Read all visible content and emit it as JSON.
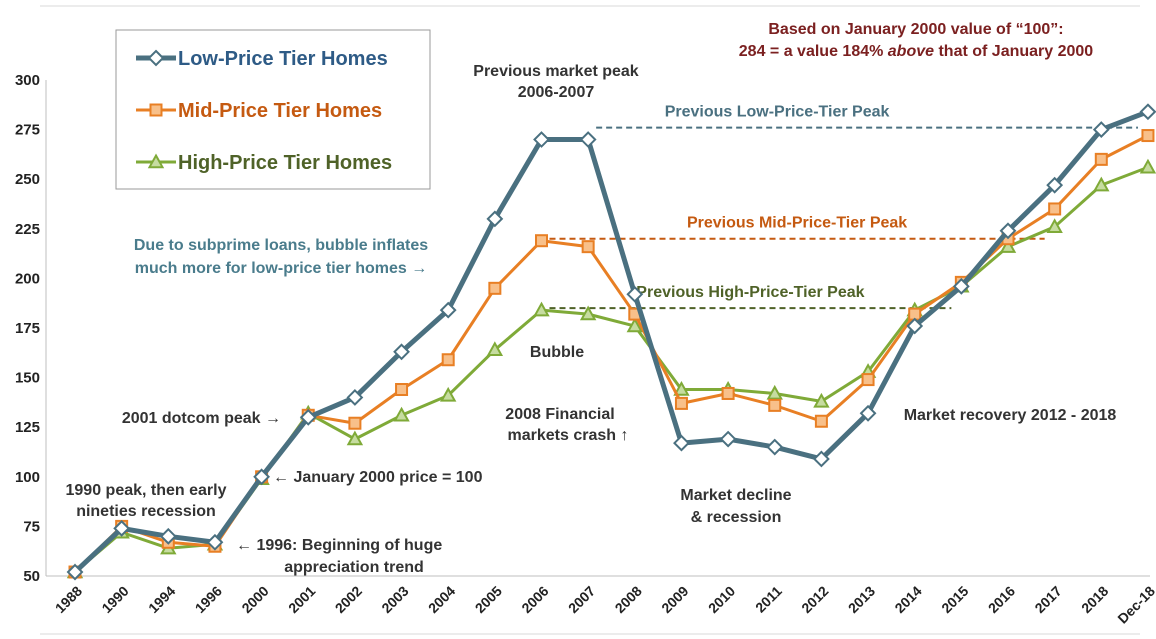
{
  "chart_data": {
    "type": "line",
    "categories": [
      "1988",
      "1990",
      "1994",
      "1996",
      "2000",
      "2001",
      "2002",
      "2003",
      "2004",
      "2005",
      "2006",
      "2007",
      "2008",
      "2009",
      "2010",
      "2011",
      "2012",
      "2013",
      "2014",
      "2015",
      "2016",
      "2017",
      "2018",
      "Dec-18"
    ],
    "ylim": [
      50,
      300
    ],
    "yticks": [
      50,
      75,
      100,
      125,
      150,
      175,
      200,
      225,
      250,
      275,
      300
    ],
    "grid": false,
    "legend_position": "top-left",
    "series": [
      {
        "name": "Low-Price Tier Homes",
        "color": "#4a7080",
        "text_color": "#2e5b86",
        "marker": "diamond",
        "values": [
          52,
          74,
          70,
          67,
          100,
          130,
          140,
          163,
          184,
          230,
          270,
          270,
          192,
          117,
          119,
          115,
          109,
          132,
          176,
          196,
          224,
          247,
          275,
          284
        ]
      },
      {
        "name": "Mid-Price Tier Homes",
        "color": "#e87f24",
        "text_color": "#c55a11",
        "marker": "square",
        "values": [
          52,
          75,
          67,
          65,
          100,
          131,
          127,
          144,
          159,
          195,
          219,
          216,
          182,
          137,
          142,
          136,
          128,
          149,
          182,
          198,
          220,
          235,
          260,
          272
        ]
      },
      {
        "name": "High-Price Tier Homes",
        "color": "#7faa38",
        "text_color": "#4f6228",
        "marker": "triangle",
        "values": [
          52,
          72,
          64,
          66,
          99,
          132,
          119,
          131,
          141,
          164,
          184,
          182,
          176,
          144,
          144,
          142,
          138,
          153,
          184,
          196,
          216,
          226,
          247,
          256
        ]
      }
    ],
    "reference_lines": [
      {
        "label": "Previous Low-Price-Tier Peak",
        "value": 276,
        "from": "2007",
        "to": "Dec-18",
        "color": "#4a7080"
      },
      {
        "label": "Previous Mid-Price-Tier Peak",
        "value": 220,
        "from": "2006",
        "to": "2017",
        "color": "#c55a11"
      },
      {
        "label": "Previous High-Price-Tier Peak",
        "value": 185,
        "from": "2006",
        "to": "2015",
        "color": "#4f6228"
      }
    ],
    "note": {
      "line1": "Based on January 2000 value of “100”:",
      "line2_a": "284 = a value 184% ",
      "line2_b": "above",
      "line2_c": " that of January 2000",
      "color": "#7b2020"
    },
    "annotations": {
      "previous_peak_l1": "Previous market peak",
      "previous_peak_l2": "2006-2007",
      "subprime_l1": "Due to subprime loans, bubble inflates",
      "subprime_l2": "much more for low-price tier homes →",
      "subprime_color": "#4a7c8c",
      "bubble": "Bubble",
      "dotcom": "2001 dotcom peak →",
      "jan2000": "← January 2000 price = 100",
      "peak1990_l1": "1990 peak, then early",
      "peak1990_l2": "nineties recession",
      "trend1996_l1": "← 1996: Beginning of huge",
      "trend1996_l2": "appreciation trend",
      "crash_l1": "2008 Financial",
      "crash_l2": "markets crash ↑",
      "decline_l1": "Market decline",
      "decline_l2": "& recession",
      "recovery": "Market recovery 2012 - 2018",
      "dark_color": "#333333"
    }
  }
}
